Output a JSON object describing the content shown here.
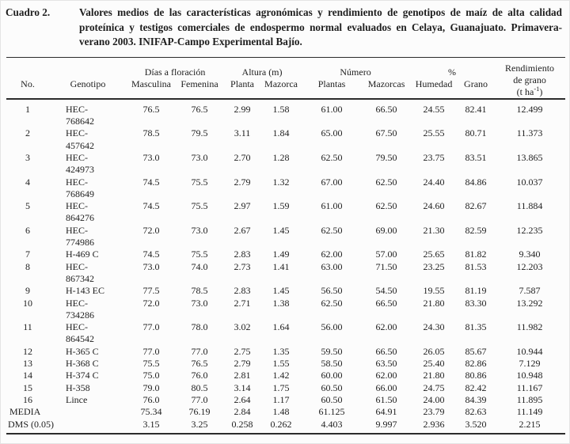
{
  "caption": {
    "label": "Cuadro 2.",
    "lines": [
      "Valores medios de las características agronómicas y rendimiento de genotipos de maíz de alta calidad",
      "proteínica y testigos comerciales de endospermo normal evaluados en Celaya, Guanajuato. Primavera-",
      "verano 2003. INIFAP-Campo Experimental Bajío."
    ]
  },
  "table": {
    "group_headers": {
      "dias": "Días a floración",
      "altura": "Altura (m)",
      "numero": "Número",
      "pct": "%"
    },
    "col_headers": {
      "no": "No.",
      "genotipo": "Genotipo",
      "masculina": "Masculina",
      "femenina": "Femenina",
      "planta": "Planta",
      "mazorca": "Mazorca",
      "plantas": "Plantas",
      "mazorcas": "Mazorcas",
      "humedad": "Humedad",
      "grano": "Grano"
    },
    "yield_header": {
      "line1": "Rendimiento",
      "line2": "de grano",
      "unit_open": "(t ha",
      "unit_exp": "-1",
      "unit_close": ")"
    },
    "rows": [
      {
        "no": "1",
        "genotipo_lines": [
          "HEC-",
          "768642"
        ],
        "values": [
          "76.5",
          "76.5",
          "2.99",
          "1.58",
          "61.00",
          "66.50",
          "24.55",
          "82.41",
          "12.499"
        ]
      },
      {
        "no": "2",
        "genotipo_lines": [
          "HEC-",
          "457642"
        ],
        "values": [
          "78.5",
          "79.5",
          "3.11",
          "1.84",
          "65.00",
          "67.50",
          "25.55",
          "80.71",
          "11.373"
        ]
      },
      {
        "no": "3",
        "genotipo_lines": [
          "HEC-",
          "424973"
        ],
        "values": [
          "73.0",
          "73.0",
          "2.70",
          "1.28",
          "62.50",
          "79.50",
          "23.75",
          "83.51",
          "13.865"
        ]
      },
      {
        "no": "4",
        "genotipo_lines": [
          "HEC-",
          "768649"
        ],
        "values": [
          "74.5",
          "75.5",
          "2.79",
          "1.32",
          "67.00",
          "62.50",
          "24.40",
          "84.86",
          "10.037"
        ]
      },
      {
        "no": "5",
        "genotipo_lines": [
          "HEC-",
          "864276"
        ],
        "values": [
          "74.5",
          "75.5",
          "2.97",
          "1.59",
          "61.00",
          "62.50",
          "24.60",
          "82.67",
          "11.884"
        ]
      },
      {
        "no": "6",
        "genotipo_lines": [
          "HEC-",
          "774986"
        ],
        "values": [
          "72.0",
          "73.0",
          "2.67",
          "1.45",
          "62.50",
          "69.00",
          "21.30",
          "82.59",
          "12.235"
        ]
      },
      {
        "no": "7",
        "genotipo_lines": [
          "H-469 C"
        ],
        "values": [
          "74.5",
          "75.5",
          "2.83",
          "1.49",
          "62.00",
          "57.00",
          "25.65",
          "81.82",
          "9.340"
        ]
      },
      {
        "no": "8",
        "genotipo_lines": [
          "HEC-",
          "867342"
        ],
        "values": [
          "73.0",
          "74.0",
          "2.73",
          "1.41",
          "63.00",
          "71.50",
          "23.25",
          "81.53",
          "12.203"
        ]
      },
      {
        "no": "9",
        "genotipo_lines": [
          "H-143 EC"
        ],
        "values": [
          "77.5",
          "78.5",
          "2.83",
          "1.45",
          "56.50",
          "54.50",
          "19.55",
          "81.19",
          "7.587"
        ]
      },
      {
        "no": "10",
        "genotipo_lines": [
          "HEC-",
          "734286"
        ],
        "values": [
          "72.0",
          "73.0",
          "2.71",
          "1.38",
          "62.50",
          "66.50",
          "21.80",
          "83.30",
          "13.292"
        ]
      },
      {
        "no": "11",
        "genotipo_lines": [
          "HEC-",
          "864542"
        ],
        "values": [
          "77.0",
          "78.0",
          "3.02",
          "1.64",
          "56.00",
          "62.00",
          "24.30",
          "81.35",
          "11.982"
        ]
      },
      {
        "no": "12",
        "genotipo_lines": [
          "H-365 C"
        ],
        "values": [
          "77.0",
          "77.0",
          "2.75",
          "1.35",
          "59.50",
          "66.50",
          "26.05",
          "85.67",
          "10.944"
        ]
      },
      {
        "no": "13",
        "genotipo_lines": [
          "H-368 C"
        ],
        "values": [
          "75.5",
          "76.5",
          "2.79",
          "1.55",
          "58.50",
          "63.50",
          "25.40",
          "82.86",
          "7.129"
        ]
      },
      {
        "no": "14",
        "genotipo_lines": [
          "H-374 C"
        ],
        "values": [
          "75.0",
          "76.0",
          "2.81",
          "1.42",
          "60.00",
          "62.00",
          "21.80",
          "80.86",
          "10.948"
        ]
      },
      {
        "no": "15",
        "genotipo_lines": [
          "H-358"
        ],
        "values": [
          "79.0",
          "80.5",
          "3.14",
          "1.75",
          "60.50",
          "66.00",
          "24.75",
          "82.42",
          "11.167"
        ]
      },
      {
        "no": "16",
        "genotipo_lines": [
          "Lince"
        ],
        "values": [
          "76.0",
          "77.0",
          "2.64",
          "1.17",
          "60.50",
          "61.50",
          "24.00",
          "84.39",
          "11.895"
        ]
      }
    ],
    "summary_rows": [
      {
        "label": "MEDIA",
        "values": [
          "75.34",
          "76.19",
          "2.84",
          "1.48",
          "61.125",
          "64.91",
          "23.79",
          "82.63",
          "11.149"
        ]
      },
      {
        "label": "DMS (0.05)",
        "values": [
          "3.15",
          "3.25",
          "0.258",
          "0.262",
          "4.403",
          "9.997",
          "2.936",
          "3.520",
          "2.215"
        ]
      }
    ]
  }
}
